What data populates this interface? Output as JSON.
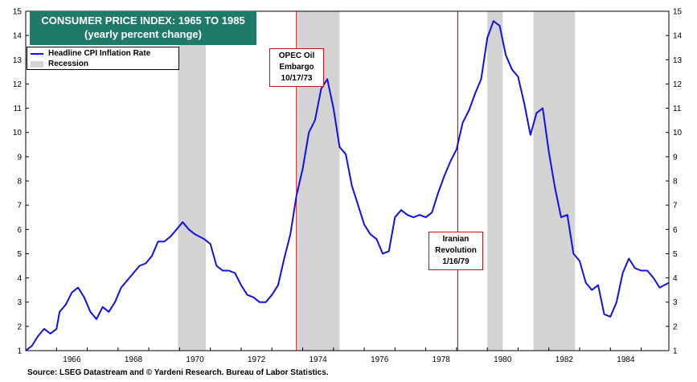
{
  "chart_data": {
    "type": "line",
    "title": "CONSUMER PRICE INDEX: 1965 TO 1985",
    "subtitle": "(yearly percent change)",
    "legend": [
      "Headline CPI Inflation Rate",
      "Recession"
    ],
    "legend_placement": "top-left",
    "grid": false,
    "ylim": [
      1,
      15
    ],
    "y_ticks": [
      1,
      2,
      3,
      4,
      5,
      6,
      7,
      8,
      9,
      10,
      11,
      12,
      13,
      14,
      15
    ],
    "x_range": [
      1965,
      1985.9
    ],
    "x_ticks": [
      "1966",
      "1968",
      "1970",
      "1972",
      "1974",
      "1976",
      "1978",
      "1980",
      "1982",
      "1984"
    ],
    "series": [
      {
        "name": "Headline CPI Inflation Rate",
        "color": "#1010ee",
        "x": [
          1965.0,
          1965.2,
          1965.4,
          1965.6,
          1965.8,
          1966.0,
          1966.1,
          1966.3,
          1966.5,
          1966.7,
          1966.9,
          1967.1,
          1967.3,
          1967.5,
          1967.7,
          1967.9,
          1968.1,
          1968.3,
          1968.5,
          1968.7,
          1968.9,
          1969.1,
          1969.3,
          1969.5,
          1969.7,
          1969.9,
          1970.1,
          1970.3,
          1970.5,
          1970.8,
          1971.0,
          1971.2,
          1971.4,
          1971.6,
          1971.8,
          1972.0,
          1972.2,
          1972.4,
          1972.6,
          1972.8,
          1973.0,
          1973.2,
          1973.4,
          1973.6,
          1973.8,
          1974.0,
          1974.2,
          1974.4,
          1974.6,
          1974.8,
          1975.0,
          1975.2,
          1975.4,
          1975.6,
          1975.8,
          1976.0,
          1976.2,
          1976.4,
          1976.6,
          1976.8,
          1977.0,
          1977.2,
          1977.4,
          1977.6,
          1977.8,
          1978.0,
          1978.2,
          1978.4,
          1978.6,
          1978.8,
          1979.0,
          1979.2,
          1979.4,
          1979.6,
          1979.8,
          1980.0,
          1980.2,
          1980.4,
          1980.6,
          1980.8,
          1981.0,
          1981.2,
          1981.4,
          1981.6,
          1981.8,
          1982.0,
          1982.2,
          1982.4,
          1982.6,
          1982.8,
          1983.0,
          1983.2,
          1983.4,
          1983.6,
          1983.8,
          1984.0,
          1984.2,
          1984.4,
          1984.6,
          1984.8,
          1985.0,
          1985.2,
          1985.4,
          1985.6,
          1985.9
        ],
        "values": [
          1.0,
          1.2,
          1.6,
          1.9,
          1.7,
          1.9,
          2.6,
          2.9,
          3.4,
          3.6,
          3.2,
          2.6,
          2.3,
          2.8,
          2.6,
          3.0,
          3.6,
          3.9,
          4.2,
          4.5,
          4.6,
          4.9,
          5.5,
          5.5,
          5.7,
          6.0,
          6.3,
          6.0,
          5.8,
          5.6,
          5.4,
          4.5,
          4.3,
          4.3,
          4.2,
          3.7,
          3.3,
          3.2,
          3.0,
          3.0,
          3.3,
          3.7,
          4.8,
          5.8,
          7.4,
          8.5,
          10.0,
          10.5,
          11.8,
          12.2,
          11.0,
          9.4,
          9.1,
          7.8,
          7.0,
          6.2,
          5.8,
          5.6,
          5.0,
          5.1,
          6.5,
          6.8,
          6.6,
          6.5,
          6.6,
          6.5,
          6.7,
          7.5,
          8.2,
          8.8,
          9.3,
          10.4,
          10.9,
          11.6,
          12.2,
          13.9,
          14.6,
          14.4,
          13.2,
          12.6,
          12.3,
          11.2,
          9.9,
          10.8,
          11.0,
          9.2,
          7.7,
          6.5,
          6.6,
          5.0,
          4.7,
          3.8,
          3.5,
          3.7,
          2.5,
          2.4,
          3.0,
          4.2,
          4.8,
          4.4,
          4.3,
          4.3,
          4.0,
          3.6,
          3.8
        ]
      }
    ],
    "recessions": [
      [
        1969.95,
        1970.85
      ],
      [
        1973.85,
        1975.2
      ],
      [
        1980.0,
        1980.5
      ],
      [
        1981.5,
        1982.85
      ]
    ],
    "events": [
      {
        "x": 1973.8,
        "label_lines": [
          "OPEC Oil",
          "Embargo",
          "10/17/73"
        ],
        "color": "#e01010"
      },
      {
        "x": 1979.04,
        "label_lines": [
          "Iranian",
          "Revolution",
          "1/16/79"
        ],
        "color": "#e01010"
      }
    ]
  },
  "source_note": "Source: LSEG Datastream and © Yardeni Research. Bureau of Labor Statistics."
}
